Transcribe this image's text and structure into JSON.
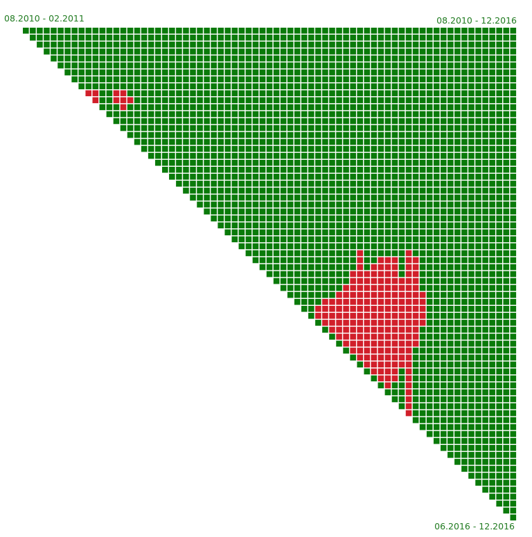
{
  "labels": {
    "top_left": "08.2010 - 02.2011",
    "top_right": "08.2010 - 12.2016",
    "bottom_right": "06.2016 - 12.2016"
  },
  "colors": {
    "positive": "#0a7a0a",
    "negative": "#d11f2a",
    "cell_border": "#ffffff",
    "label": "#1f7a1f"
  },
  "chart_data": {
    "type": "heatmap",
    "title": "",
    "shape": "upper-triangle",
    "size": 71,
    "default_value": "positive",
    "red_cells": {
      "9": [
        9,
        10,
        13,
        14
      ],
      "10": [
        10,
        13,
        14,
        15
      ],
      "11": [
        14
      ],
      "32": [
        48,
        55
      ],
      "33": [
        48,
        51,
        52,
        53,
        55,
        56
      ],
      "34": [
        48,
        50,
        51,
        52,
        53,
        55,
        56
      ],
      "35": [
        47,
        48,
        49,
        50,
        51,
        52,
        53,
        55,
        56
      ],
      "36": [
        47,
        48,
        49,
        50,
        51,
        52,
        53,
        54,
        55,
        56
      ],
      "37": [
        46,
        47,
        48,
        49,
        50,
        51,
        52,
        53,
        54,
        55,
        56
      ],
      "38": [
        45,
        46,
        47,
        48,
        49,
        50,
        51,
        52,
        53,
        54,
        55,
        56,
        57
      ],
      "39": [
        43,
        44,
        45,
        46,
        47,
        48,
        49,
        50,
        51,
        52,
        53,
        54,
        55,
        56,
        57
      ],
      "40": [
        42,
        43,
        44,
        45,
        46,
        47,
        48,
        49,
        50,
        51,
        52,
        53,
        54,
        55,
        56,
        57
      ],
      "41": [
        42,
        43,
        44,
        45,
        46,
        47,
        48,
        49,
        50,
        51,
        52,
        53,
        54,
        55,
        56,
        57
      ],
      "42": [
        43,
        44,
        45,
        46,
        47,
        48,
        49,
        50,
        51,
        52,
        53,
        54,
        55,
        56,
        57
      ],
      "43": [
        44,
        45,
        46,
        47,
        48,
        49,
        50,
        51,
        52,
        53,
        54,
        55,
        56
      ],
      "44": [
        45,
        46,
        47,
        48,
        49,
        50,
        51,
        52,
        53,
        54,
        55,
        56
      ],
      "45": [
        46,
        47,
        48,
        49,
        50,
        51,
        52,
        53,
        54,
        55,
        56
      ],
      "46": [
        47,
        48,
        49,
        50,
        51,
        52,
        53,
        54,
        55
      ],
      "47": [
        48,
        49,
        50,
        51,
        52,
        53,
        54,
        55
      ],
      "48": [
        49,
        50,
        51,
        52,
        53,
        54,
        55
      ],
      "49": [
        50,
        51,
        52,
        53,
        55
      ],
      "50": [
        51,
        52,
        53,
        55
      ],
      "51": [
        52,
        55
      ],
      "52": [
        55
      ],
      "53": [
        55
      ],
      "54": [
        55
      ],
      "55": [
        55
      ]
    }
  }
}
